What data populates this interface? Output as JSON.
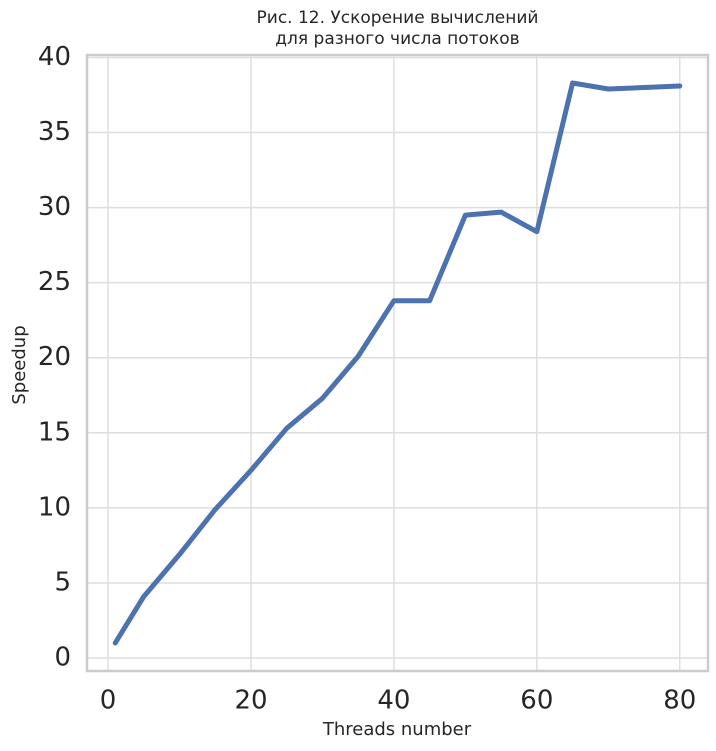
{
  "chart_data": {
    "type": "line",
    "title": "Рис. 12. Ускорение вычислений\nдля разного числа потоков",
    "x_label": "Threads number",
    "y_label": "Speedup",
    "x": [
      1,
      5,
      10,
      15,
      20,
      25,
      30,
      35,
      40,
      45,
      50,
      55,
      60,
      65,
      70,
      80
    ],
    "series": [
      {
        "name": "Speedup",
        "color": "#4c72b0",
        "values": [
          1.0,
          4.1,
          6.9,
          9.9,
          12.5,
          15.3,
          17.3,
          20.1,
          23.8,
          23.8,
          29.5,
          29.7,
          28.4,
          38.3,
          37.9,
          38.1
        ]
      }
    ],
    "xlim": [
      -2.95,
      83.95
    ],
    "xticks": [
      0,
      20,
      40,
      60,
      80
    ],
    "ylim": [
      -0.865,
      40.165
    ],
    "yticks": [
      0,
      5,
      10,
      15,
      20,
      25,
      30,
      35,
      40
    ],
    "grid": true
  }
}
